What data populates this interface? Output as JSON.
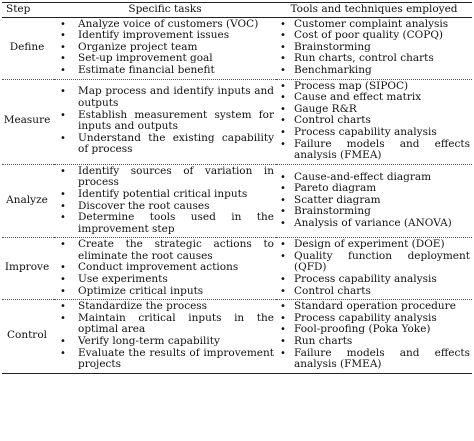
{
  "table": {
    "headers": {
      "step": "Step",
      "tasks": "Specific tasks",
      "tools": "Tools and techniques employed"
    },
    "rows": [
      {
        "step": "Define",
        "tasks": [
          "Analyze voice of customers (VOC)",
          "Identify improvement issues",
          "Organize project team",
          "Set-up improvement goal",
          "Estimate financial benefit"
        ],
        "tools": [
          "Customer complaint analysis",
          "Cost of poor quality (COPQ)",
          "Brainstorming",
          "Run charts, control charts",
          "Benchmarking"
        ]
      },
      {
        "step": "Measure",
        "tasks": [
          "Map process and identify inputs and outputs",
          "Establish measurement system for inputs and outputs",
          "Understand the existing capability of process"
        ],
        "tools": [
          "Process map (SIPOC)",
          "Cause and effect matrix",
          "Gauge R&R",
          "Control charts",
          "Process capability analysis",
          "Failure models and effects analysis (FMEA)"
        ]
      },
      {
        "step": "Analyze",
        "tasks": [
          "Identify sources of variation in process",
          "Identify potential critical inputs",
          "Discover the root causes",
          "Determine tools used in the improvement step"
        ],
        "tools": [
          "Cause-and-effect diagram",
          "Pareto diagram",
          "Scatter diagram",
          "Brainstorming",
          "Analysis of variance (ANOVA)"
        ]
      },
      {
        "step": "Improve",
        "tasks": [
          "Create the strategic actions to eliminate the root causes",
          "Conduct improvement actions",
          "Use experiments",
          "Optimize critical inputs"
        ],
        "tools": [
          "Design of experiment (DOE)",
          "Quality function deployment (QFD)",
          "Process capability analysis",
          "Control charts"
        ]
      },
      {
        "step": "Control",
        "tasks": [
          "Standardize the process",
          "Maintain critical inputs in the optimal area",
          "Verify long-term capability",
          "Evaluate the results of improvement projects"
        ],
        "tools": [
          "Standard operation procedure",
          "Process capability analysis",
          "Fool-proofing (Poka Yoke)",
          "Run charts",
          "Failure models and effects analysis (FMEA)"
        ]
      }
    ]
  }
}
